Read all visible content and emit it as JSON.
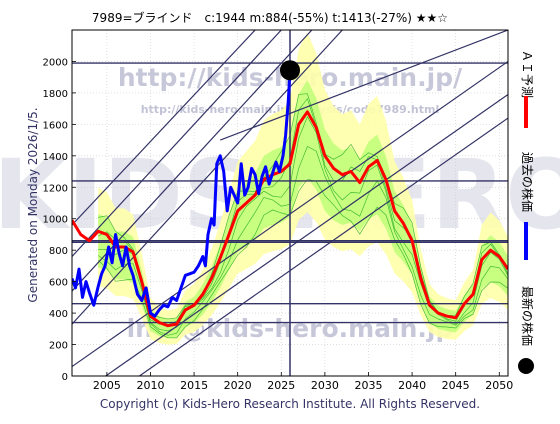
{
  "header": {
    "title": "7989=ブラインド　c:1944  m:884(-55%)  t:1413(-27%)  ★★☆"
  },
  "left_note": "Generated on Monday 2026/1/5.",
  "footer": "Copyright (c) Kids-Hero Research Institute. All Rights Reserved.",
  "watermarks": [
    "http://kids-hero.main.jp/",
    "http://kids-hero.main.jp/analysis/code7989.html",
    "info@kids-hero.main.jp",
    "KIDS HERO"
  ],
  "legend": [
    {
      "label": "ＡＩ予測",
      "color": "#ff0000",
      "kind": "line"
    },
    {
      "label": "過去の株価",
      "color": "#0000ff",
      "kind": "line"
    },
    {
      "label": "最新の株価",
      "color": "#000000",
      "kind": "dot"
    }
  ],
  "colors": {
    "ai_forecast": "#ff0000",
    "past_price": "#0000ff",
    "latest_dot": "#000000",
    "band_outer": "#ffffaa",
    "band_inner": "#aaff66",
    "band_lines": "#22aa22",
    "ref_lines": "#333366",
    "watermark": "#9999bb"
  },
  "chart_data": {
    "type": "line",
    "xlim": [
      2001,
      2051
    ],
    "ylim": [
      0,
      2200
    ],
    "xticks": [
      "2005",
      "2010",
      "2015",
      "2020",
      "2025",
      "2030",
      "2035",
      "2040",
      "2045",
      "2050"
    ],
    "yticks": [
      "0",
      "200",
      "400",
      "600",
      "800",
      "1000",
      "1200",
      "1400",
      "1600",
      "1800",
      "2000"
    ],
    "grid": true,
    "horizontal_lines": [
      1990,
      1240,
      860,
      850,
      460,
      340
    ],
    "vertical_line_x": 2026,
    "diagonal_channel_lines": [
      [
        [
          2001,
          330
        ],
        [
          2032,
          2200
        ]
      ],
      [
        [
          2001,
          540
        ],
        [
          2028.5,
          2200
        ]
      ],
      [
        [
          2001,
          760
        ],
        [
          2025,
          2200
        ]
      ],
      [
        [
          2001,
          960
        ],
        [
          2022,
          2200
        ]
      ],
      [
        [
          2001,
          60
        ],
        [
          2051,
          2000
        ]
      ],
      [
        [
          2001,
          -150
        ],
        [
          2051,
          1790
        ]
      ],
      [
        [
          2001,
          -300
        ],
        [
          2051,
          1640
        ]
      ],
      [
        [
          2018,
          1500
        ],
        [
          2051,
          2200
        ]
      ]
    ],
    "latest": {
      "x": 2026.0,
      "y": 1944
    },
    "series": [
      {
        "name": "ＡＩ予測",
        "x": [
          2001,
          2002,
          2003,
          2004,
          2005,
          2006,
          2007,
          2008,
          2009,
          2010,
          2011,
          2012,
          2013,
          2014,
          2015,
          2016,
          2017,
          2018,
          2019,
          2020,
          2021,
          2022,
          2023,
          2024,
          2025,
          2026,
          2027,
          2028,
          2029,
          2030,
          2031,
          2032,
          2033,
          2034,
          2035,
          2036,
          2037,
          2038,
          2039,
          2040,
          2041,
          2042,
          2043,
          2044,
          2045,
          2046,
          2047,
          2048,
          2049,
          2050,
          2051
        ],
        "values": [
          990,
          900,
          860,
          920,
          900,
          820,
          820,
          790,
          600,
          380,
          340,
          320,
          330,
          420,
          450,
          520,
          620,
          750,
          900,
          1050,
          1100,
          1150,
          1250,
          1280,
          1300,
          1350,
          1600,
          1680,
          1580,
          1400,
          1320,
          1280,
          1300,
          1230,
          1330,
          1370,
          1250,
          1050,
          970,
          860,
          620,
          450,
          400,
          380,
          370,
          460,
          520,
          740,
          800,
          760,
          680
        ]
      },
      {
        "name": "過去の株価",
        "x": [
          2001.0,
          2001.4,
          2001.8,
          2002.2,
          2002.6,
          2003.0,
          2003.5,
          2004.0,
          2004.4,
          2004.8,
          2005.2,
          2005.6,
          2006.0,
          2006.4,
          2006.8,
          2007.2,
          2007.6,
          2008.0,
          2008.5,
          2009.0,
          2009.5,
          2010.0,
          2010.5,
          2011.0,
          2011.5,
          2012.0,
          2012.5,
          2013.0,
          2013.5,
          2014.0,
          2014.5,
          2015.0,
          2015.5,
          2016.0,
          2016.3,
          2016.6,
          2017.0,
          2017.3,
          2017.6,
          2018.0,
          2018.4,
          2018.8,
          2019.2,
          2019.6,
          2020.0,
          2020.4,
          2020.8,
          2021.2,
          2021.6,
          2022.0,
          2022.4,
          2022.8,
          2023.2,
          2023.6,
          2024.0,
          2024.4,
          2024.8,
          2025.2,
          2025.5,
          2025.8,
          2026.0
        ],
        "values": [
          620,
          560,
          680,
          500,
          600,
          530,
          450,
          570,
          650,
          700,
          820,
          720,
          900,
          780,
          700,
          820,
          700,
          640,
          520,
          480,
          560,
          400,
          380,
          420,
          450,
          440,
          500,
          480,
          560,
          640,
          650,
          660,
          700,
          760,
          700,
          900,
          1000,
          960,
          1350,
          1400,
          1300,
          1050,
          1200,
          1150,
          1100,
          1350,
          1150,
          1200,
          1320,
          1280,
          1160,
          1270,
          1330,
          1220,
          1290,
          1360,
          1300,
          1400,
          1530,
          1750,
          1944
        ]
      }
    ]
  }
}
